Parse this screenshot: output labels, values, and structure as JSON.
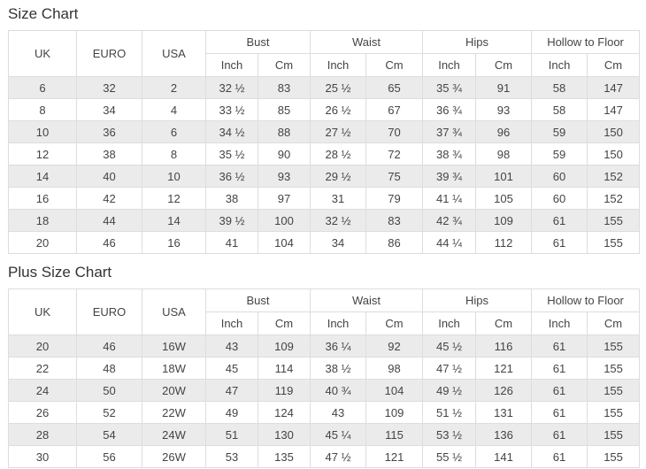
{
  "titles": {
    "standard": "Size Chart",
    "plus": "Plus Size Chart"
  },
  "headers": {
    "uk": "UK",
    "euro": "EURO",
    "usa": "USA",
    "bust": "Bust",
    "waist": "Waist",
    "hips": "Hips",
    "hollow_to_floor": "Hollow to Floor",
    "inch": "Inch",
    "cm": "Cm"
  },
  "standard_rows": [
    [
      "6",
      "32",
      "2",
      "32 ½",
      "83",
      "25 ½",
      "65",
      "35 ¾",
      "91",
      "58",
      "147"
    ],
    [
      "8",
      "34",
      "4",
      "33 ½",
      "85",
      "26 ½",
      "67",
      "36 ¾",
      "93",
      "58",
      "147"
    ],
    [
      "10",
      "36",
      "6",
      "34 ½",
      "88",
      "27 ½",
      "70",
      "37 ¾",
      "96",
      "59",
      "150"
    ],
    [
      "12",
      "38",
      "8",
      "35 ½",
      "90",
      "28 ½",
      "72",
      "38 ¾",
      "98",
      "59",
      "150"
    ],
    [
      "14",
      "40",
      "10",
      "36 ½",
      "93",
      "29 ½",
      "75",
      "39 ¾",
      "101",
      "60",
      "152"
    ],
    [
      "16",
      "42",
      "12",
      "38",
      "97",
      "31",
      "79",
      "41 ¼",
      "105",
      "60",
      "152"
    ],
    [
      "18",
      "44",
      "14",
      "39 ½",
      "100",
      "32 ½",
      "83",
      "42 ¾",
      "109",
      "61",
      "155"
    ],
    [
      "20",
      "46",
      "16",
      "41",
      "104",
      "34",
      "86",
      "44 ¼",
      "112",
      "61",
      "155"
    ]
  ],
  "plus_rows": [
    [
      "20",
      "46",
      "16W",
      "43",
      "109",
      "36 ¼",
      "92",
      "45 ½",
      "116",
      "61",
      "155"
    ],
    [
      "22",
      "48",
      "18W",
      "45",
      "114",
      "38 ½",
      "98",
      "47 ½",
      "121",
      "61",
      "155"
    ],
    [
      "24",
      "50",
      "20W",
      "47",
      "119",
      "40 ¾",
      "104",
      "49 ½",
      "126",
      "61",
      "155"
    ],
    [
      "26",
      "52",
      "22W",
      "49",
      "124",
      "43",
      "109",
      "51 ½",
      "131",
      "61",
      "155"
    ],
    [
      "28",
      "54",
      "24W",
      "51",
      "130",
      "45 ¼",
      "115",
      "53 ½",
      "136",
      "61",
      "155"
    ],
    [
      "30",
      "56",
      "26W",
      "53",
      "135",
      "47 ½",
      "121",
      "55 ½",
      "141",
      "61",
      "155"
    ]
  ],
  "colors": {
    "title_text": "#333333",
    "cell_text": "#444444",
    "border": "#dddddd",
    "stripe_row": "#ebebeb",
    "background": "#ffffff"
  }
}
